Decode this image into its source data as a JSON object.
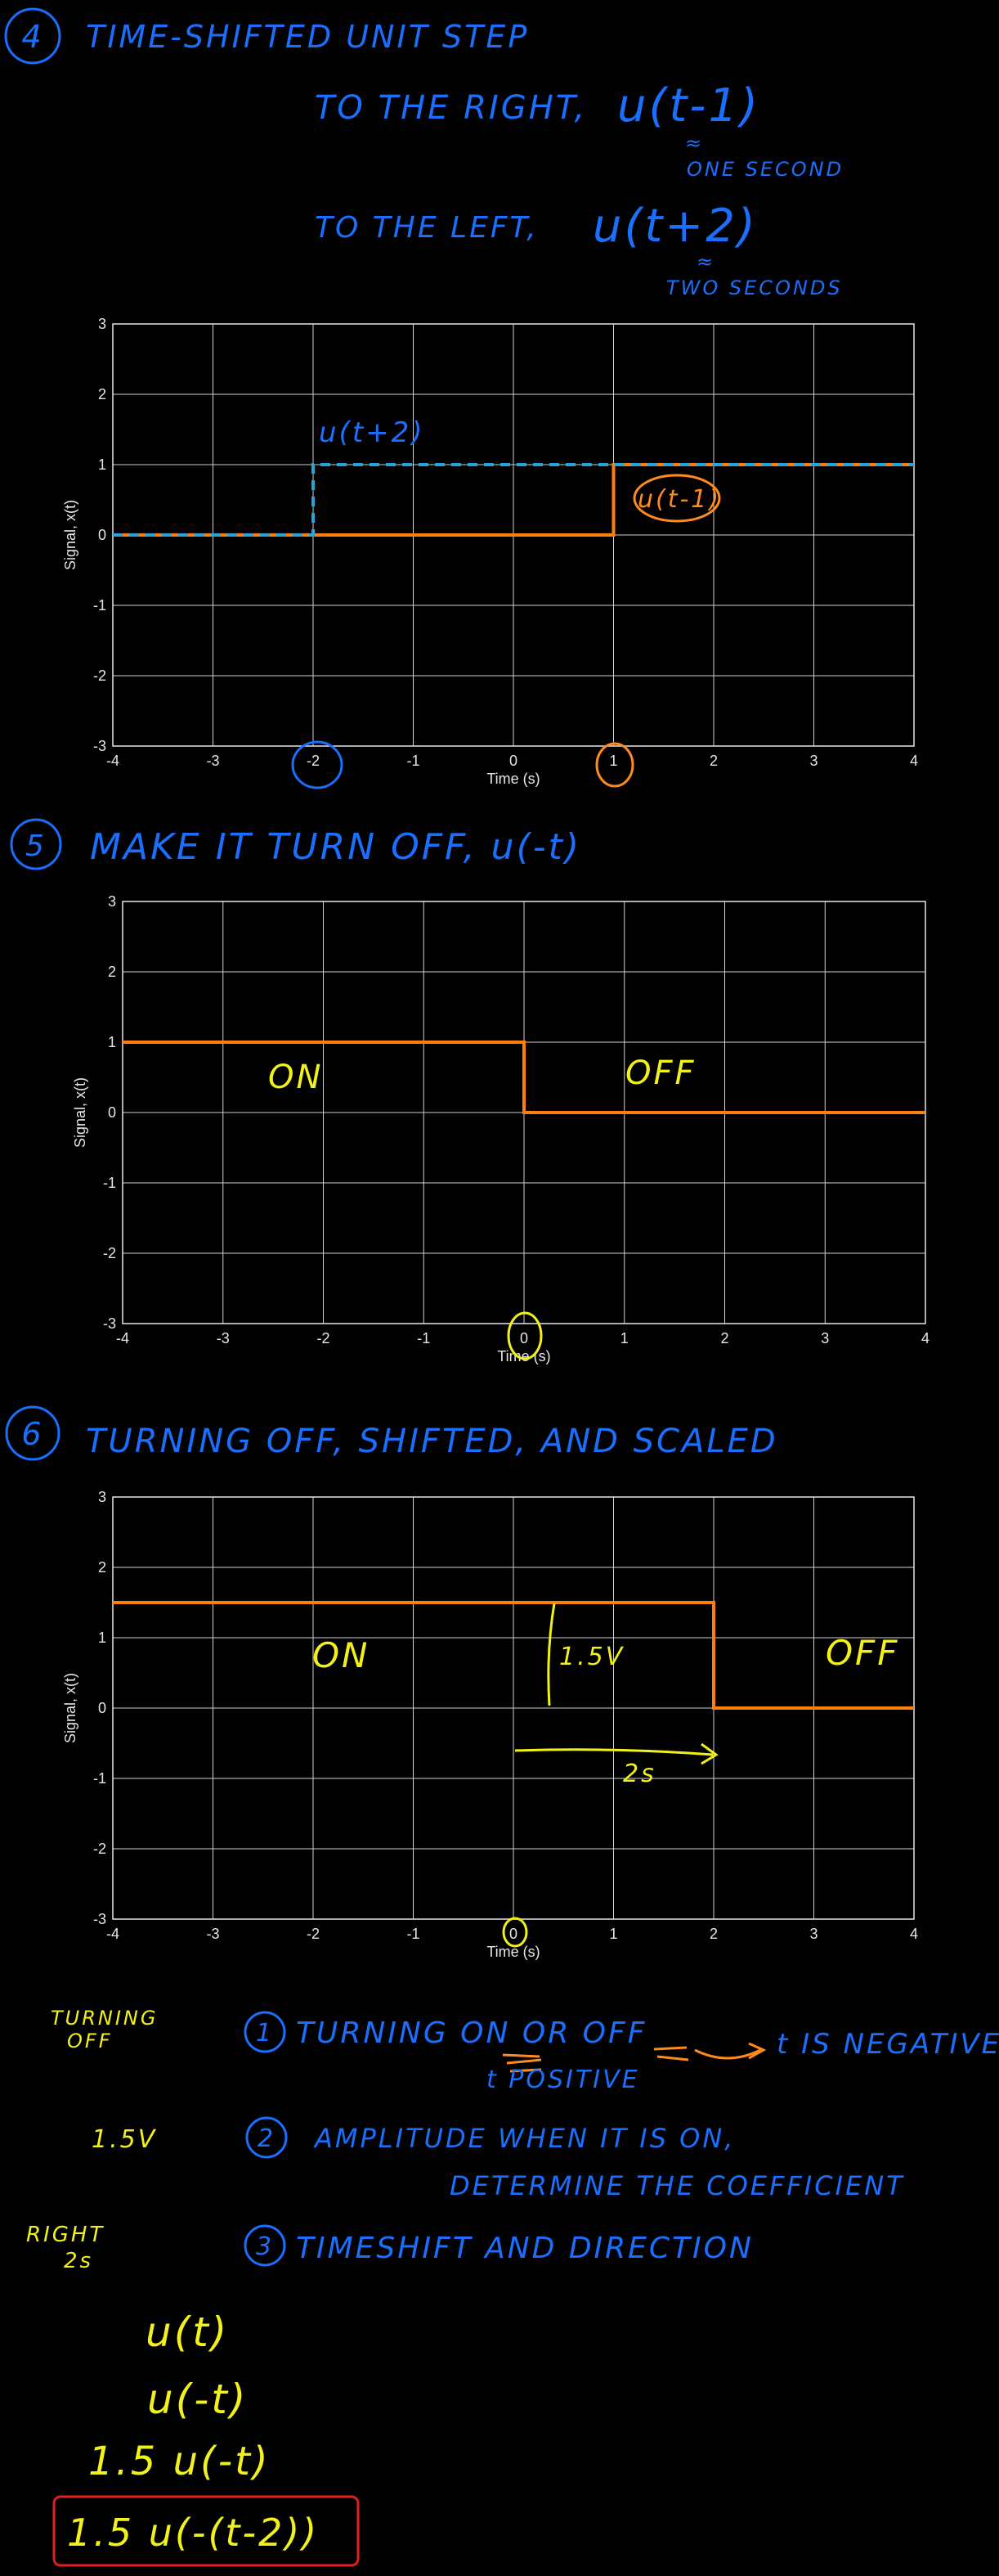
{
  "colors": {
    "background": "#000000",
    "blue_ink": "#1a6fff",
    "orange_ink": "#ff8a1e",
    "yellow_ink": "#f2f21a",
    "red_box": "#e02020",
    "grid": "#cfcfcf",
    "orange_signal": "#ff7f0e",
    "blue_signal": "#2aa3d8"
  },
  "section4": {
    "number": "4",
    "title": "TIME-SHIFTED UNIT STEP",
    "right_text": "TO THE RIGHT,",
    "right_expr": "u(t-1)",
    "right_note": "ONE SECOND",
    "left_text": "TO THE LEFT,",
    "left_expr": "u(t+2)",
    "left_note": "TWO SECONDS"
  },
  "section5": {
    "number": "5",
    "title": "MAKE IT TURN OFF, u(-t)"
  },
  "section6": {
    "number": "6",
    "title": "TURNING OFF, SHIFTED, AND SCALED"
  },
  "chart_data": [
    {
      "type": "line",
      "xlabel": "Time (s)",
      "ylabel": "Signal, x(t)",
      "xlim": [
        -4,
        4
      ],
      "ylim": [
        -3,
        3
      ],
      "xticks": [
        -4,
        -3,
        -2,
        -1,
        0,
        1,
        2,
        3,
        4
      ],
      "yticks": [
        -3,
        -2,
        -1,
        0,
        1,
        2,
        3
      ],
      "grid": true,
      "series": [
        {
          "name": "u(t-1)",
          "style": "solid",
          "color": "#ff7f0e",
          "x": [
            -4,
            1,
            1,
            4
          ],
          "y": [
            0,
            0,
            1,
            1
          ]
        },
        {
          "name": "u(t+2)",
          "style": "dashed",
          "color": "#2aa3d8",
          "x": [
            -4,
            -2,
            -2,
            4
          ],
          "y": [
            0,
            0,
            1,
            1
          ]
        }
      ],
      "annotations": [
        {
          "text": "u(t+2)",
          "color": "#1a6fff"
        },
        {
          "text": "u(t-1)",
          "color": "#ff8a1e"
        }
      ]
    },
    {
      "type": "line",
      "xlabel": "Time (s)",
      "ylabel": "Signal, x(t)",
      "xlim": [
        -4,
        4
      ],
      "ylim": [
        -3,
        3
      ],
      "xticks": [
        -4,
        -3,
        -2,
        -1,
        0,
        1,
        2,
        3,
        4
      ],
      "yticks": [
        -3,
        -2,
        -1,
        0,
        1,
        2,
        3
      ],
      "grid": true,
      "series": [
        {
          "name": "u(-t)",
          "style": "solid",
          "color": "#ff7f0e",
          "x": [
            -4,
            0,
            0,
            4
          ],
          "y": [
            1,
            1,
            0,
            0
          ]
        }
      ],
      "annotations": [
        {
          "text": "ON",
          "color": "#f2f21a"
        },
        {
          "text": "OFF",
          "color": "#f2f21a"
        }
      ]
    },
    {
      "type": "line",
      "xlabel": "Time (s)",
      "ylabel": "Signal, x(t)",
      "xlim": [
        -4,
        4
      ],
      "ylim": [
        -3,
        3
      ],
      "xticks": [
        -4,
        -3,
        -2,
        -1,
        0,
        1,
        2,
        3,
        4
      ],
      "yticks": [
        -3,
        -2,
        -1,
        0,
        1,
        2,
        3
      ],
      "grid": true,
      "series": [
        {
          "name": "1.5u(-(t-2))",
          "style": "solid",
          "color": "#ff7f0e",
          "x": [
            -4,
            2,
            2,
            4
          ],
          "y": [
            1.5,
            1.5,
            0,
            0
          ]
        }
      ],
      "annotations": [
        {
          "text": "ON",
          "color": "#f2f21a"
        },
        {
          "text": "1.5V",
          "color": "#f2f21a"
        },
        {
          "text": "2s",
          "color": "#f2f21a"
        },
        {
          "text": "OFF",
          "color": "#f2f21a"
        }
      ]
    }
  ],
  "steps": {
    "step1_side": "TURNING OFF",
    "step1_number": "1",
    "step1_text": "TURNING ON OR OFF",
    "step1_note_a": "t POSITIVE",
    "step1_note_b": "t IS NEGATIVE",
    "step2_side": "1.5V",
    "step2_number": "2",
    "step2_text": "AMPLITUDE WHEN IT IS ON,",
    "step2_text2": "DETERMINE THE COEFFICIENT",
    "step3_side_a": "RIGHT",
    "step3_side_b": "2s",
    "step3_number": "3",
    "step3_text": "TIMESHIFT AND DIRECTION"
  },
  "derivation": [
    "u(t)",
    "u(-t)",
    "1.5 u(-t)",
    "1.5 u(-(t-2))"
  ]
}
